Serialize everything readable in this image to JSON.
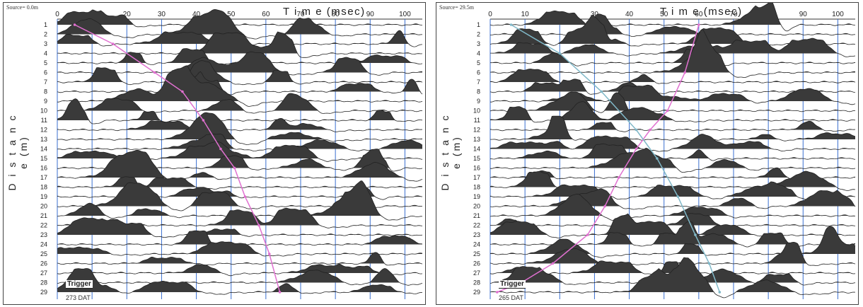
{
  "chart_data": [
    {
      "type": "seismic-wiggle",
      "source_label": "Source= 0.0m",
      "xlabel": "T i m e (msec)",
      "ylabel": "D i s t a n c e (m)",
      "xlim": [
        0,
        105
      ],
      "x_ticks": [
        0,
        10,
        20,
        30,
        40,
        50,
        60,
        70,
        80,
        90,
        100
      ],
      "traces": [
        1,
        2,
        3,
        4,
        5,
        6,
        7,
        8,
        9,
        10,
        11,
        12,
        13,
        14,
        15,
        16,
        17,
        18,
        19,
        20,
        21,
        22,
        23,
        24,
        25,
        26,
        27,
        28,
        29
      ],
      "trigger_label": "Trigger",
      "file_label": "273 DAT",
      "first_arrival_pick": {
        "color": "#e070d0",
        "points": [
          [
            5,
            1
          ],
          [
            16,
            3
          ],
          [
            28,
            6
          ],
          [
            36,
            8
          ],
          [
            42,
            11
          ],
          [
            47,
            14
          ],
          [
            51,
            16
          ],
          [
            54,
            19
          ],
          [
            58,
            22
          ],
          [
            61,
            25
          ],
          [
            64,
            29
          ]
        ]
      },
      "second_pick": null
    },
    {
      "type": "seismic-wiggle",
      "source_label": "Source= 29.5m",
      "xlabel": "T i m e (msec)",
      "ylabel": "D i s t a n c e (m)",
      "xlim": [
        0,
        105
      ],
      "x_ticks": [
        0,
        10,
        20,
        30,
        40,
        50,
        60,
        70,
        80,
        90,
        100
      ],
      "traces": [
        1,
        2,
        3,
        4,
        5,
        6,
        7,
        8,
        9,
        10,
        11,
        12,
        13,
        14,
        15,
        16,
        17,
        18,
        19,
        20,
        21,
        22,
        23,
        24,
        25,
        26,
        27,
        28,
        29
      ],
      "trigger_label": "Trigger",
      "file_label": "265 DAT",
      "first_arrival_pick": {
        "color": "#e070d0",
        "points": [
          [
            60,
            1
          ],
          [
            56,
            6
          ],
          [
            51,
            10
          ],
          [
            46,
            12
          ],
          [
            42,
            14
          ],
          [
            37,
            17
          ],
          [
            33,
            20
          ],
          [
            28,
            23
          ],
          [
            18,
            26
          ],
          [
            9,
            28
          ],
          [
            2,
            29
          ]
        ]
      },
      "second_pick": {
        "color": "#80b8c8",
        "points": [
          [
            6,
            1
          ],
          [
            20,
            4
          ],
          [
            32,
            8
          ],
          [
            42,
            12
          ],
          [
            48,
            15
          ],
          [
            54,
            19
          ],
          [
            59,
            23
          ],
          [
            63,
            26
          ],
          [
            66,
            29
          ]
        ]
      }
    }
  ]
}
